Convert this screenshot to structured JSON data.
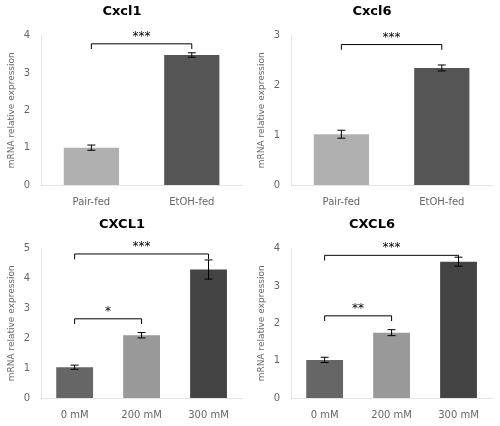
{
  "chart_data": [
    {
      "type": "bar",
      "title": "Cxcl1",
      "categories": [
        "Pair-fed",
        "EtOH-fed"
      ],
      "values": [
        1.0,
        3.48
      ],
      "errors": [
        0.07,
        0.06
      ],
      "colors": [
        "#b0b0b0",
        "#555555"
      ],
      "ylim": [
        0,
        4
      ],
      "yticks": [
        0,
        1,
        2,
        3,
        4
      ],
      "ylabel": "mRNA relative expression",
      "grid": false,
      "annotations": [
        {
          "text": "***",
          "from": "Pair-fed",
          "to": "EtOH-fed",
          "y": 3.78
        }
      ]
    },
    {
      "type": "bar",
      "title": "Cxcl6",
      "categories": [
        "Pair-fed",
        "EtOH-fed"
      ],
      "values": [
        1.02,
        2.35
      ],
      "errors": [
        0.08,
        0.06
      ],
      "colors": [
        "#b0b0b0",
        "#555555"
      ],
      "ylim": [
        0,
        3
      ],
      "yticks": [
        0,
        1,
        2,
        3
      ],
      "ylabel": "mRNA relative expression",
      "grid": false,
      "annotations": [
        {
          "text": "***",
          "from": "Pair-fed",
          "to": "EtOH-fed",
          "y": 2.82
        }
      ]
    },
    {
      "type": "bar",
      "title": "CXCL1",
      "categories": [
        "0 mM",
        "200 mM",
        "300 mM"
      ],
      "values": [
        1.03,
        2.1,
        4.3
      ],
      "errors": [
        0.07,
        0.09,
        0.32
      ],
      "colors": [
        "#666666",
        "#999999",
        "#444444"
      ],
      "ylim": [
        0,
        5
      ],
      "yticks": [
        0,
        1,
        2,
        3,
        4,
        5
      ],
      "ylabel": "mRNA relative expression",
      "grid": false,
      "annotations": [
        {
          "text": "*",
          "from": "0 mM",
          "to": "200 mM",
          "y": 2.65
        },
        {
          "text": "***",
          "from": "0 mM",
          "to": "300 mM",
          "y": 4.82
        }
      ]
    },
    {
      "type": "bar",
      "title": "CXCL6",
      "categories": [
        "0 mM",
        "200 mM",
        "300 mM"
      ],
      "values": [
        1.02,
        1.75,
        3.65
      ],
      "errors": [
        0.07,
        0.08,
        0.12
      ],
      "colors": [
        "#666666",
        "#999999",
        "#444444"
      ],
      "ylim": [
        0,
        4
      ],
      "yticks": [
        0,
        1,
        2,
        3,
        4
      ],
      "ylabel": "mRNA relative expression",
      "grid": false,
      "annotations": [
        {
          "text": "**",
          "from": "0 mM",
          "to": "200 mM",
          "y": 2.2
        },
        {
          "text": "***",
          "from": "0 mM",
          "to": "300 mM",
          "y": 3.82
        }
      ]
    }
  ]
}
